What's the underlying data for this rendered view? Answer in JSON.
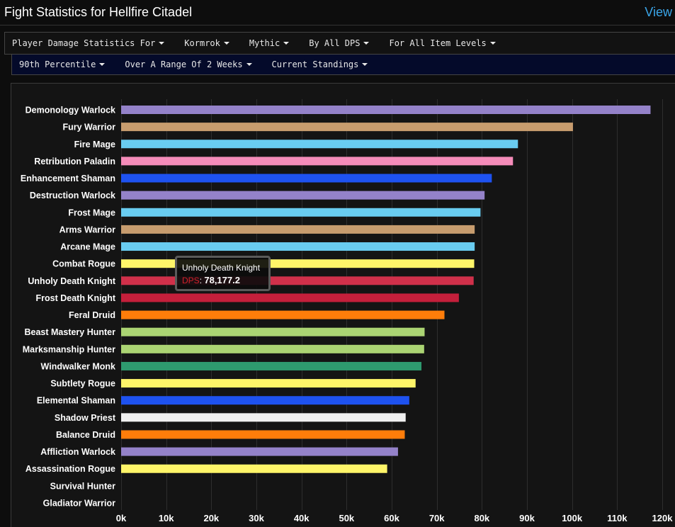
{
  "page": {
    "title": "Fight Statistics for Hellfire Citadel",
    "view_link": "View"
  },
  "filters_row1": [
    {
      "label": "Player Damage Statistics For"
    },
    {
      "label": "Kormrok"
    },
    {
      "label": "Mythic"
    },
    {
      "label": "By All DPS"
    },
    {
      "label": "For All Item Levels"
    }
  ],
  "filters_row2": [
    {
      "label": "90th Percentile"
    },
    {
      "label": "Over A Range Of 2 Weeks"
    },
    {
      "label": "Current Standings"
    }
  ],
  "tooltip": {
    "title": "Unholy Death Knight",
    "label": "DPS",
    "value": "78,177.2"
  },
  "chart_data": {
    "type": "bar",
    "orientation": "horizontal",
    "xlim": [
      0,
      120000
    ],
    "x_ticks": [
      0,
      10000,
      20000,
      30000,
      40000,
      50000,
      60000,
      70000,
      80000,
      90000,
      100000,
      110000,
      120000
    ],
    "x_tick_labels": [
      "0k",
      "10k",
      "20k",
      "30k",
      "40k",
      "50k",
      "60k",
      "70k",
      "80k",
      "90k",
      "100k",
      "110k",
      "120k"
    ],
    "grid": true,
    "categories": [
      "Demonology Warlock",
      "Fury Warrior",
      "Fire Mage",
      "Retribution Paladin",
      "Enhancement Shaman",
      "Destruction Warlock",
      "Frost Mage",
      "Arms Warrior",
      "Arcane Mage",
      "Combat Rogue",
      "Unholy Death Knight",
      "Frost Death Knight",
      "Feral Druid",
      "Beast Mastery Hunter",
      "Marksmanship Hunter",
      "Windwalker Monk",
      "Subtlety Rogue",
      "Elemental Shaman",
      "Shadow Priest",
      "Balance Druid",
      "Affliction Warlock",
      "Assassination Rogue",
      "Survival Hunter",
      "Gladiator Warrior"
    ],
    "values": [
      117400,
      100200,
      88000,
      86900,
      82200,
      80600,
      79700,
      78400,
      78400,
      78300,
      78177.2,
      74900,
      71700,
      67300,
      67200,
      66600,
      65300,
      63900,
      63100,
      62900,
      61400,
      59000,
      0,
      0
    ],
    "colors": [
      "#9482c9",
      "#c79c6e",
      "#69ccf0",
      "#f58cba",
      "#1e52f0",
      "#9482c9",
      "#69ccf0",
      "#c79c6e",
      "#69ccf0",
      "#fff569",
      "#d0304a",
      "#c41f3b",
      "#ff7d0a",
      "#abd473",
      "#abd473",
      "#2e9a6f",
      "#fff569",
      "#1e52f0",
      "#f0f0f0",
      "#ff7d0a",
      "#9482c9",
      "#fff569",
      "#abd473",
      "#c79c6e"
    ]
  }
}
